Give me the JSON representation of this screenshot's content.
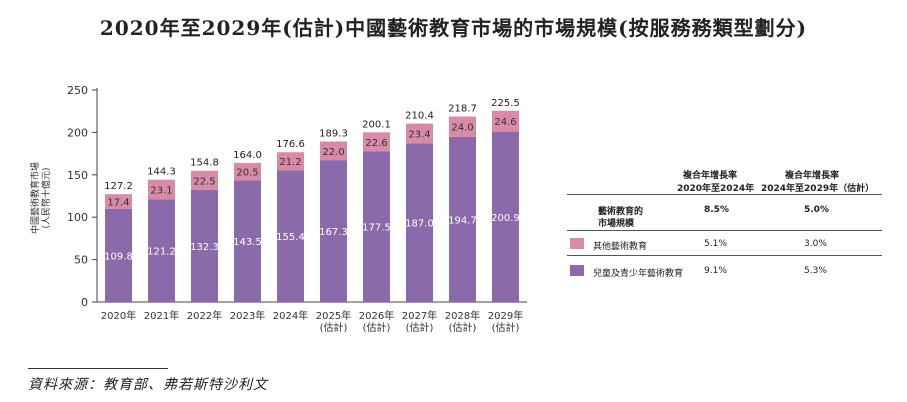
{
  "title": "2020年至2029年(估計)中國藝術教育市場的市場規模(按服務務類型劃分)",
  "source": "資料來源：教育部、弗若斯特沙利文",
  "colors": {
    "children": "#8a6aab",
    "other": "#d98aa8"
  },
  "chart_data": {
    "type": "bar",
    "stacked": true,
    "categories": [
      "2020年",
      "2021年",
      "2022年",
      "2023年",
      "2024年",
      "2025年\n(估計)",
      "2026年\n(估計)",
      "2027年\n(估計)",
      "2028年\n(估計)",
      "2029年\n(估計)"
    ],
    "series": [
      {
        "name": "兒童及青少年藝術教育",
        "values": [
          109.8,
          121.2,
          132.3,
          143.5,
          155.4,
          167.3,
          177.5,
          187.0,
          194.7,
          200.9
        ]
      },
      {
        "name": "其他藝術教育",
        "values": [
          17.4,
          23.1,
          22.5,
          20.5,
          21.2,
          22.0,
          22.6,
          23.4,
          24.0,
          24.6
        ]
      }
    ],
    "totals": [
      127.2,
      144.3,
      154.8,
      164.0,
      176.6,
      189.3,
      200.1,
      210.4,
      218.7,
      225.5
    ],
    "ylabel": "中國藝術教育市場\n(人民幣十億元)",
    "ylim": [
      0,
      250
    ],
    "yticks": [
      0,
      50,
      100,
      150,
      200,
      250
    ]
  },
  "cagr_table": {
    "header1": [
      "複合年增長率",
      "2020年至2024年"
    ],
    "header2": [
      "複合年增長率",
      "2024年至2029年（估計）"
    ],
    "rows": [
      {
        "label": [
          "藝術教育的",
          "市場規模"
        ],
        "v1": "8.5%",
        "v2": "5.0%"
      },
      {
        "label": [
          "其他藝術教育"
        ],
        "v1": "5.1%",
        "v2": "3.0%"
      },
      {
        "label": [
          "兒童及青少年藝術教育"
        ],
        "v1": "9.1%",
        "v2": "5.3%"
      }
    ]
  }
}
